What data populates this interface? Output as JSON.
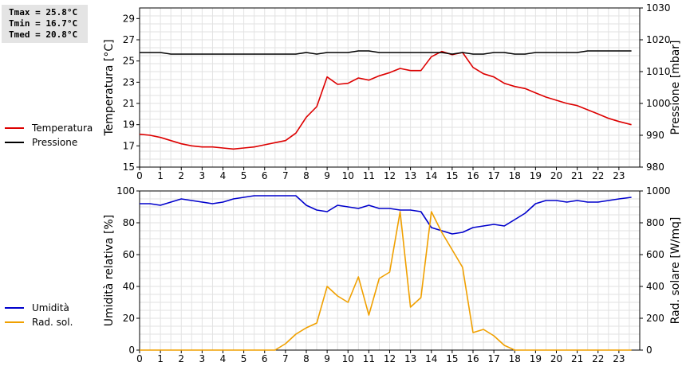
{
  "stats": {
    "tmax": "Tmax = 25.8°C",
    "tmin": "Tmin = 16.7°C",
    "tmed": "Tmed = 20.8°C"
  },
  "chart_data": [
    {
      "type": "line",
      "ylabel_left": "Temperatura [°C]",
      "ylabel_right": "Pressione [mbar]",
      "xlim": [
        0,
        24
      ],
      "x_ticks": [
        0,
        1,
        2,
        3,
        4,
        5,
        6,
        7,
        8,
        9,
        10,
        11,
        12,
        13,
        14,
        15,
        16,
        17,
        18,
        19,
        20,
        21,
        22,
        23
      ],
      "ylim_left": [
        15,
        30
      ],
      "y_ticks_left": [
        15,
        17,
        19,
        21,
        23,
        25,
        27,
        29
      ],
      "ylim_right": [
        980,
        1030
      ],
      "y_ticks_right": [
        980,
        990,
        1000,
        1010,
        1020,
        1030
      ],
      "legend_placement": "left, outside plot",
      "grid": true,
      "series": [
        {
          "name": "Temperatura",
          "axis": "left",
          "color": "#dd0000",
          "x": [
            0,
            0.5,
            1,
            1.5,
            2,
            2.5,
            3,
            3.5,
            4,
            4.5,
            5,
            5.5,
            6,
            6.5,
            7,
            7.5,
            8,
            8.5,
            9,
            9.5,
            10,
            10.5,
            11,
            11.5,
            12,
            12.5,
            13,
            13.5,
            14,
            14.5,
            15,
            15.5,
            16,
            16.5,
            17,
            17.5,
            18,
            18.5,
            19,
            19.5,
            20,
            20.5,
            21,
            21.5,
            22,
            22.5,
            23,
            23.6
          ],
          "y": [
            18.1,
            18.0,
            17.8,
            17.5,
            17.2,
            17.0,
            16.9,
            16.9,
            16.8,
            16.7,
            16.8,
            16.9,
            17.1,
            17.3,
            17.5,
            18.2,
            19.7,
            20.7,
            23.5,
            22.8,
            22.9,
            23.4,
            23.2,
            23.6,
            23.9,
            24.3,
            24.1,
            24.1,
            25.4,
            25.9,
            25.6,
            25.8,
            24.4,
            23.8,
            23.5,
            22.9,
            22.6,
            22.4,
            22.0,
            21.6,
            21.3,
            21.0,
            20.8,
            20.4,
            20.0,
            19.6,
            19.3,
            19.0
          ]
        },
        {
          "name": "Pressione",
          "axis": "right",
          "color": "#000000",
          "x": [
            0,
            1,
            1.5,
            2,
            4,
            6,
            7,
            7.5,
            8,
            8.5,
            9,
            10,
            10.5,
            11,
            11.5,
            12,
            13,
            14,
            14.5,
            15,
            15.5,
            16,
            16.5,
            17,
            17.5,
            18,
            18.5,
            19,
            20,
            21,
            21.5,
            22,
            23,
            23.6
          ],
          "y": [
            1016,
            1016,
            1015.5,
            1015.5,
            1015.5,
            1015.5,
            1015.5,
            1015.5,
            1016,
            1015.5,
            1016,
            1016,
            1016.5,
            1016.5,
            1016,
            1016,
            1016,
            1016,
            1016,
            1015.5,
            1016,
            1015.5,
            1015.5,
            1016,
            1016,
            1015.5,
            1015.5,
            1016,
            1016,
            1016,
            1016.5,
            1016.5,
            1016.5,
            1016.5
          ]
        }
      ]
    },
    {
      "type": "line",
      "ylabel_left": "Umidità relativa [%]",
      "ylabel_right": "Rad. solare [W/mq]",
      "xlim": [
        0,
        24
      ],
      "x_ticks": [
        0,
        1,
        2,
        3,
        4,
        5,
        6,
        7,
        8,
        9,
        10,
        11,
        12,
        13,
        14,
        15,
        16,
        17,
        18,
        19,
        20,
        21,
        22,
        23
      ],
      "ylim_left": [
        0,
        100
      ],
      "y_ticks_left": [
        0,
        20,
        40,
        60,
        80,
        100
      ],
      "ylim_right": [
        0,
        1000
      ],
      "y_ticks_right": [
        0,
        200,
        400,
        600,
        800,
        1000
      ],
      "legend_placement": "left, outside plot",
      "grid": true,
      "series": [
        {
          "name": "Umidità",
          "axis": "left",
          "color": "#0000cc",
          "x": [
            0,
            0.5,
            1,
            1.5,
            2,
            2.5,
            3,
            3.5,
            4,
            4.5,
            5,
            5.5,
            6,
            6.5,
            7,
            7.5,
            8,
            8.5,
            9,
            9.5,
            10,
            10.5,
            11,
            11.5,
            12,
            12.5,
            13,
            13.5,
            14,
            14.5,
            15,
            15.5,
            16,
            16.5,
            17,
            17.5,
            18,
            18.5,
            19,
            19.5,
            20,
            20.5,
            21,
            21.5,
            22,
            22.5,
            23,
            23.6
          ],
          "y": [
            92,
            92,
            91,
            93,
            95,
            94,
            93,
            92,
            93,
            95,
            96,
            97,
            97,
            97,
            97,
            97,
            91,
            88,
            87,
            91,
            90,
            89,
            91,
            89,
            89,
            88,
            88,
            87,
            77,
            75,
            73,
            74,
            77,
            78,
            79,
            78,
            82,
            86,
            92,
            94,
            94,
            93,
            94,
            93,
            93,
            94,
            95,
            96
          ]
        },
        {
          "name": "Rad. sol.",
          "axis": "right",
          "color": "#f0a000",
          "x": [
            0,
            6.5,
            7,
            7.5,
            8,
            8.5,
            9,
            9.5,
            10,
            10.5,
            11,
            11.5,
            12,
            12.5,
            13,
            13.5,
            14,
            14.5,
            15,
            15.5,
            16,
            16.5,
            17,
            17.5,
            18,
            23.6
          ],
          "y": [
            0,
            0,
            40,
            100,
            140,
            170,
            400,
            340,
            300,
            460,
            220,
            450,
            490,
            870,
            270,
            330,
            870,
            740,
            630,
            520,
            110,
            130,
            90,
            30,
            0,
            0
          ]
        }
      ]
    }
  ]
}
